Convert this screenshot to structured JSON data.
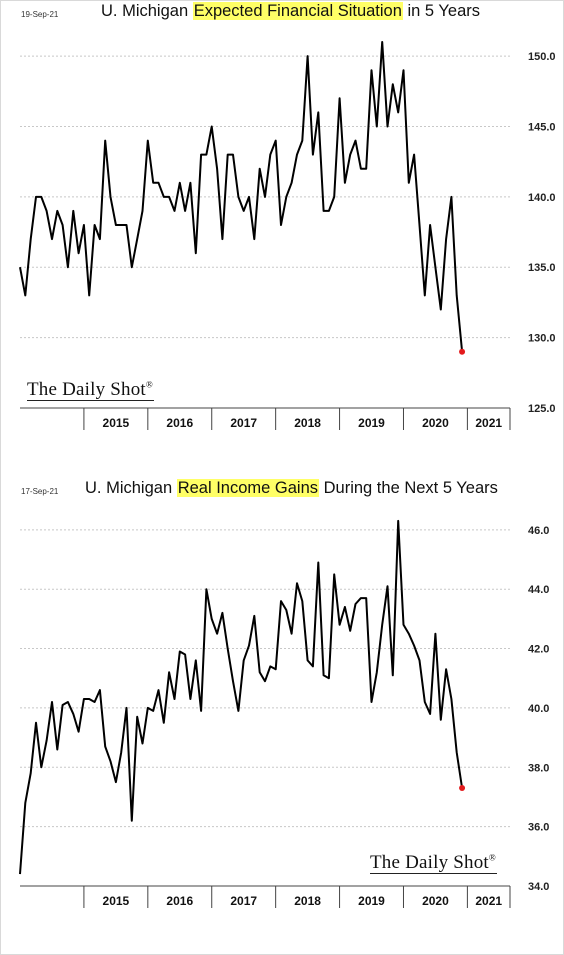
{
  "watermark": "The Daily Shot",
  "watermark_mark": "®",
  "charts": [
    {
      "date": "19-Sep-21",
      "title_pre": "U. Michigan ",
      "title_hl": "Expected Financial Situation",
      "title_post": " in 5 Years",
      "highlight_color": "#ffff66",
      "line_color": "#000000",
      "end_marker_color": "#e31a1c"
    },
    {
      "date": "17-Sep-21",
      "title_pre": "U. Michigan ",
      "title_hl": "Real Income Gains",
      "title_post": " During the Next 5 Years",
      "highlight_color": "#ffff66",
      "line_color": "#000000",
      "end_marker_color": "#e31a1c"
    }
  ],
  "chart_data": [
    {
      "type": "line",
      "title": "U. Michigan Expected Financial Situation in 5 Years",
      "x_tick_labels": [
        "2015",
        "2016",
        "2017",
        "2018",
        "2019",
        "2020",
        "2021"
      ],
      "y_tick_labels": [
        "125.0",
        "130.0",
        "135.0",
        "140.0",
        "145.0",
        "150.0"
      ],
      "ylim": [
        125,
        151.5
      ],
      "x_start": "2014-01",
      "x_end": "2021-09",
      "grid": true,
      "series": [
        {
          "values": [
            135,
            133,
            137,
            140,
            140,
            139,
            137,
            139,
            138,
            135,
            139,
            136,
            138,
            133,
            138,
            137,
            144,
            140,
            138,
            138,
            138,
            135,
            137,
            139,
            144,
            141,
            141,
            140,
            140,
            139,
            141,
            139,
            141,
            136,
            143,
            143,
            145,
            142,
            137,
            143,
            143,
            140,
            139,
            140,
            137,
            142,
            140,
            143,
            144,
            138,
            140,
            141,
            143,
            144,
            150,
            143,
            146,
            139,
            139,
            140,
            147,
            141,
            143,
            144,
            142,
            142,
            149,
            145,
            151,
            145,
            148,
            146,
            149,
            141,
            143,
            138,
            133,
            138,
            135,
            132,
            137,
            140,
            133,
            129
          ]
        }
      ]
    },
    {
      "type": "line",
      "title": "U. Michigan Real Income Gains During the Next 5 Years",
      "x_tick_labels": [
        "2015",
        "2016",
        "2017",
        "2018",
        "2019",
        "2020",
        "2021"
      ],
      "y_tick_labels": [
        "34.0",
        "36.0",
        "38.0",
        "40.0",
        "42.0",
        "44.0",
        "46.0"
      ],
      "ylim": [
        34,
        46.5
      ],
      "x_start": "2014-01",
      "x_end": "2021-09",
      "grid": true,
      "series": [
        {
          "values": [
            34.4,
            36.8,
            37.8,
            39.5,
            38.0,
            38.9,
            40.2,
            38.6,
            40.1,
            40.2,
            39.8,
            39.2,
            40.3,
            40.3,
            40.2,
            40.6,
            38.7,
            38.2,
            37.5,
            38.5,
            40.0,
            36.2,
            39.7,
            38.8,
            40.0,
            39.9,
            40.6,
            39.5,
            41.2,
            40.3,
            41.9,
            41.8,
            40.3,
            41.6,
            39.9,
            44.0,
            43.0,
            42.5,
            43.2,
            42.0,
            40.9,
            39.9,
            41.6,
            42.1,
            43.1,
            41.2,
            40.9,
            41.4,
            41.3,
            43.6,
            43.3,
            42.5,
            44.2,
            43.6,
            41.6,
            41.4,
            44.9,
            41.1,
            41.0,
            44.5,
            42.8,
            43.4,
            42.6,
            43.5,
            43.7,
            43.7,
            40.2,
            41.2,
            42.8,
            44.1,
            41.1,
            46.3,
            42.8,
            42.5,
            42.1,
            41.6,
            40.2,
            39.8,
            42.5,
            39.6,
            41.3,
            40.3,
            38.5,
            37.3
          ]
        }
      ]
    }
  ]
}
